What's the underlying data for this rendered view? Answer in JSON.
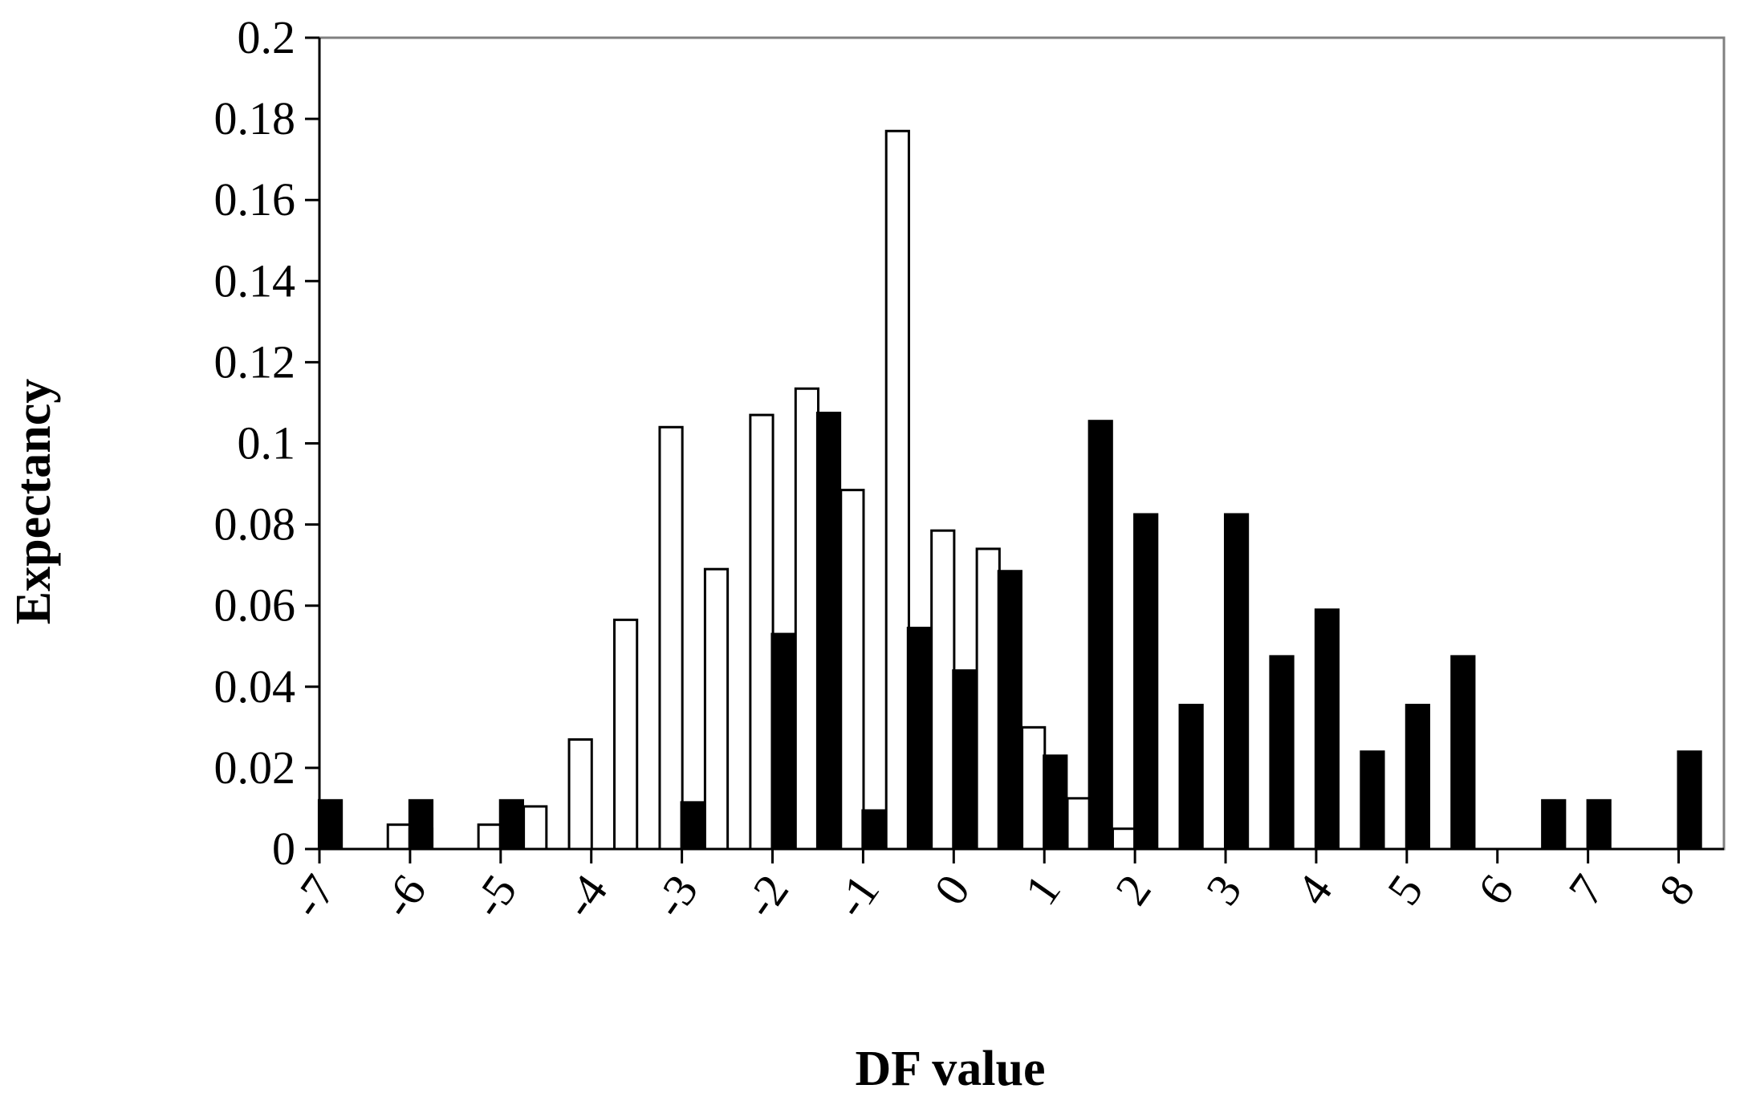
{
  "chart_data": {
    "type": "bar",
    "title": "",
    "xlabel": "DF value",
    "ylabel": "Expectancy",
    "ylim": [
      0,
      0.2
    ],
    "yticks": [
      "0",
      "0.02",
      "0.04",
      "0.06",
      "0.08",
      "0.1",
      "0.12",
      "0.14",
      "0.16",
      "0.18",
      "0.2"
    ],
    "xtick_labels": [
      "-7",
      "-6",
      "-5",
      "-4",
      "-3",
      "-2",
      "-1",
      "0",
      "1",
      "2",
      "3",
      "4",
      "5",
      "6",
      "7",
      "8"
    ],
    "x_range": [
      -7,
      8.5
    ],
    "grid": false,
    "legend": "none",
    "bar_width": 0.25,
    "series": [
      {
        "fill": "#ffffff",
        "bars": [
          {
            "x": -6.12,
            "y": 0.006
          },
          {
            "x": -5.88,
            "y": 0.005
          },
          {
            "x": -5.12,
            "y": 0.006
          },
          {
            "x": -4.62,
            "y": 0.0105
          },
          {
            "x": -4.12,
            "y": 0.027
          },
          {
            "x": -3.62,
            "y": 0.0565
          },
          {
            "x": -3.12,
            "y": 0.104
          },
          {
            "x": -2.62,
            "y": 0.069
          },
          {
            "x": -2.12,
            "y": 0.107
          },
          {
            "x": -1.62,
            "y": 0.1135
          },
          {
            "x": -1.12,
            "y": 0.0885
          },
          {
            "x": -0.62,
            "y": 0.177
          },
          {
            "x": -0.12,
            "y": 0.0785
          },
          {
            "x": 0.38,
            "y": 0.074
          },
          {
            "x": 0.88,
            "y": 0.03
          },
          {
            "x": 1.38,
            "y": 0.0125
          },
          {
            "x": 1.88,
            "y": 0.005
          }
        ]
      },
      {
        "fill": "#000000",
        "bars": [
          {
            "x": -6.88,
            "y": 0.012
          },
          {
            "x": -5.88,
            "y": 0.012
          },
          {
            "x": -4.88,
            "y": 0.012
          },
          {
            "x": -2.88,
            "y": 0.0115
          },
          {
            "x": -1.88,
            "y": 0.053
          },
          {
            "x": -1.38,
            "y": 0.1075
          },
          {
            "x": -0.88,
            "y": 0.0095
          },
          {
            "x": -0.38,
            "y": 0.0545
          },
          {
            "x": 0.12,
            "y": 0.044
          },
          {
            "x": 0.62,
            "y": 0.0685
          },
          {
            "x": 1.12,
            "y": 0.023
          },
          {
            "x": 1.62,
            "y": 0.1055
          },
          {
            "x": 2.12,
            "y": 0.0825
          },
          {
            "x": 2.62,
            "y": 0.0355
          },
          {
            "x": 3.12,
            "y": 0.0825
          },
          {
            "x": 3.62,
            "y": 0.0475
          },
          {
            "x": 4.12,
            "y": 0.059
          },
          {
            "x": 4.62,
            "y": 0.024
          },
          {
            "x": 5.12,
            "y": 0.0355
          },
          {
            "x": 5.62,
            "y": 0.0475
          },
          {
            "x": 6.62,
            "y": 0.012
          },
          {
            "x": 7.12,
            "y": 0.012
          },
          {
            "x": 8.12,
            "y": 0.024
          }
        ]
      }
    ]
  }
}
